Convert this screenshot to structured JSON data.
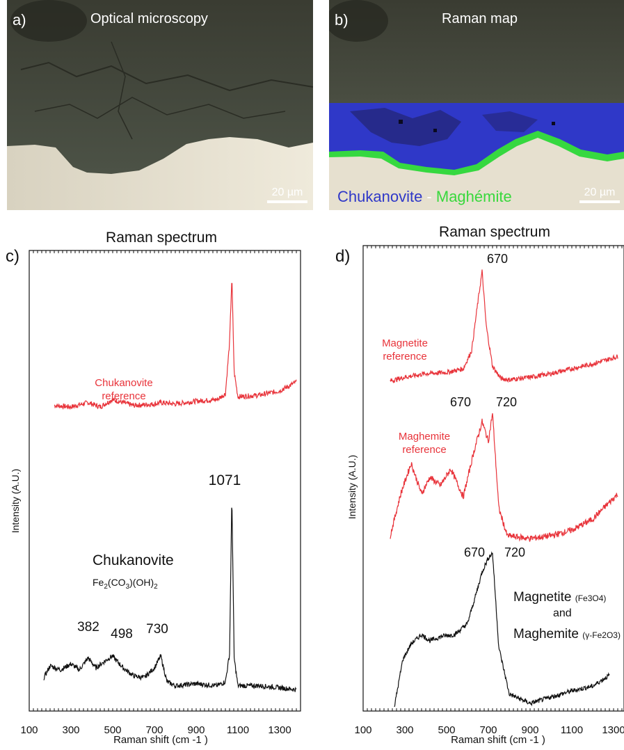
{
  "panel_a": {
    "label": "a)",
    "title": "Optical microscopy",
    "scale_bar": "20 µm"
  },
  "panel_b": {
    "label": "b)",
    "title": "Raman map",
    "scale_bar": "20 µm",
    "legend": {
      "phase1": "Chukanovite",
      "sep": " - ",
      "phase2": "Maghémite"
    },
    "colors": {
      "chukanovite": "#2f38c8",
      "maghemite": "#38d83c"
    }
  },
  "chart_data": [
    {
      "panel": "c)",
      "type": "line",
      "title": "Raman spectrum",
      "xlabel": "Raman shift (cm -1 )",
      "ylabel": "Intensity (A.U.)",
      "xlim": [
        100,
        1400
      ],
      "xticks": [
        100,
        300,
        500,
        700,
        900,
        1100,
        1300
      ],
      "series": [
        {
          "name": "Chukanovite reference",
          "color": "#e8333a",
          "x": [
            220,
            300,
            382,
            440,
            498,
            600,
            700,
            730,
            800,
            900,
            1000,
            1040,
            1060,
            1071,
            1082,
            1100,
            1200,
            1300,
            1380
          ],
          "y": [
            0.12,
            0.11,
            0.14,
            0.11,
            0.16,
            0.12,
            0.13,
            0.14,
            0.13,
            0.15,
            0.16,
            0.2,
            0.55,
            1.0,
            0.35,
            0.18,
            0.19,
            0.22,
            0.28
          ]
        },
        {
          "name": "Chukanovite",
          "color": "#111111",
          "x": [
            170,
            200,
            250,
            300,
            340,
            382,
            420,
            470,
            498,
            550,
            600,
            650,
            700,
            730,
            760,
            800,
            900,
            1000,
            1040,
            1060,
            1071,
            1082,
            1100,
            1200,
            1300,
            1380
          ],
          "y": [
            0.08,
            0.14,
            0.12,
            0.15,
            0.12,
            0.18,
            0.13,
            0.17,
            0.19,
            0.13,
            0.09,
            0.08,
            0.13,
            0.19,
            0.06,
            0.04,
            0.05,
            0.04,
            0.06,
            0.2,
            1.0,
            0.18,
            0.04,
            0.04,
            0.03,
            0.02
          ]
        }
      ],
      "peak_labels": [
        {
          "text": "1071",
          "x": 1071
        },
        {
          "text": "382",
          "x": 382
        },
        {
          "text": "498",
          "x": 498
        },
        {
          "text": "730",
          "x": 730
        }
      ],
      "annotations": {
        "ref": [
          "Chukanovite",
          "reference"
        ],
        "sample_name": "Chukanovite",
        "formula": "Fe2(CO3)(OH)2"
      }
    },
    {
      "panel": "d)",
      "type": "line",
      "title": "Raman spectrum",
      "xlabel": "Raman shift (cm -1 )",
      "ylabel": "Intensity (A.U.)",
      "xlim": [
        100,
        1350
      ],
      "xticks": [
        100,
        300,
        500,
        700,
        900,
        1100,
        1300
      ],
      "series": [
        {
          "name": "Magnetite reference",
          "color": "#e8333a",
          "x": [
            230,
            300,
            400,
            500,
            580,
            620,
            650,
            670,
            690,
            720,
            760,
            800,
            900,
            1000,
            1100,
            1200,
            1320
          ],
          "y": [
            0.1,
            0.13,
            0.16,
            0.17,
            0.2,
            0.35,
            0.75,
            1.0,
            0.55,
            0.22,
            0.12,
            0.11,
            0.13,
            0.16,
            0.2,
            0.24,
            0.3
          ]
        },
        {
          "name": "Maghemite reference",
          "color": "#e8333a",
          "x": [
            230,
            280,
            330,
            380,
            420,
            470,
            520,
            580,
            630,
            670,
            700,
            720,
            750,
            790,
            900,
            1000,
            1100,
            1200,
            1320
          ],
          "y": [
            0.1,
            0.4,
            0.62,
            0.4,
            0.52,
            0.46,
            0.58,
            0.38,
            0.7,
            0.92,
            0.78,
            0.98,
            0.3,
            0.1,
            0.08,
            0.1,
            0.14,
            0.22,
            0.4
          ]
        },
        {
          "name": "Magnetite (Fe3O4) and Maghemite (γ-Fe2O3)",
          "color": "#111111",
          "x": [
            250,
            290,
            330,
            380,
            420,
            480,
            540,
            600,
            650,
            670,
            700,
            720,
            750,
            800,
            900,
            1000,
            1100,
            1200,
            1280
          ],
          "y": [
            0.02,
            0.32,
            0.42,
            0.48,
            0.44,
            0.47,
            0.48,
            0.55,
            0.78,
            0.88,
            0.97,
            1.0,
            0.4,
            0.1,
            0.04,
            0.08,
            0.12,
            0.15,
            0.22
          ]
        }
      ],
      "peak_labels": [
        {
          "text": "670",
          "x": 670,
          "series": 0
        },
        {
          "text": "670",
          "x": 670,
          "series": 1
        },
        {
          "text": "720",
          "x": 720,
          "series": 1
        },
        {
          "text": "670",
          "x": 670,
          "series": 2
        },
        {
          "text": "720",
          "x": 720,
          "series": 2
        }
      ],
      "annotations": {
        "ref1": [
          "Magnetite",
          "reference"
        ],
        "ref2": [
          "Maghemite",
          "reference"
        ],
        "sample_line1": "Magnetite",
        "sample_formula1": "(Fe3O4)",
        "sample_line2": "and",
        "sample_line3": "Maghemite",
        "sample_formula2": "(γ-Fe2O3)"
      }
    }
  ]
}
